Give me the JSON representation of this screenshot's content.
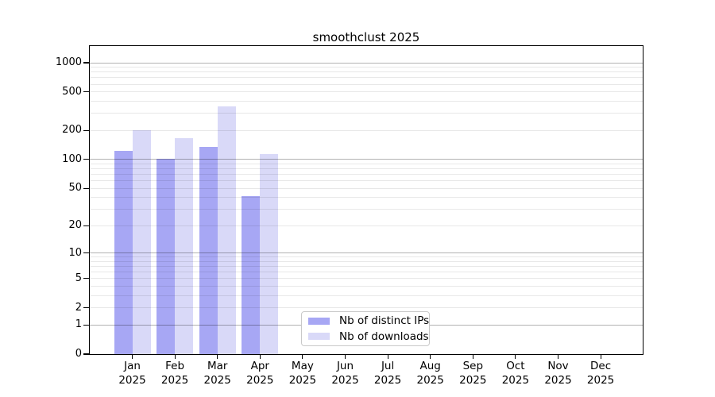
{
  "title": "smoothclust 2025",
  "chart_data": {
    "type": "bar",
    "title": "smoothclust 2025",
    "categories": [
      "Jan",
      "Feb",
      "Mar",
      "Apr",
      "May",
      "Jun",
      "Jul",
      "Aug",
      "Sep",
      "Oct",
      "Nov",
      "Dec"
    ],
    "category_year": "2025",
    "series": [
      {
        "name": "Nb of distinct IPs",
        "color": "#a7a7f4",
        "values": [
          123,
          102,
          134,
          41,
          null,
          null,
          null,
          null,
          null,
          null,
          null,
          null
        ]
      },
      {
        "name": "Nb of downloads",
        "color": "#d9d9f8",
        "values": [
          203,
          168,
          355,
          115,
          null,
          null,
          null,
          null,
          null,
          null,
          null,
          null
        ]
      }
    ],
    "yticks": [
      0,
      1,
      2,
      5,
      10,
      20,
      50,
      100,
      200,
      500,
      1000
    ],
    "scale": "log1p",
    "ylim": [
      0,
      1470
    ],
    "grid": "horizontal",
    "legend_position": "inside-bottom-center"
  }
}
